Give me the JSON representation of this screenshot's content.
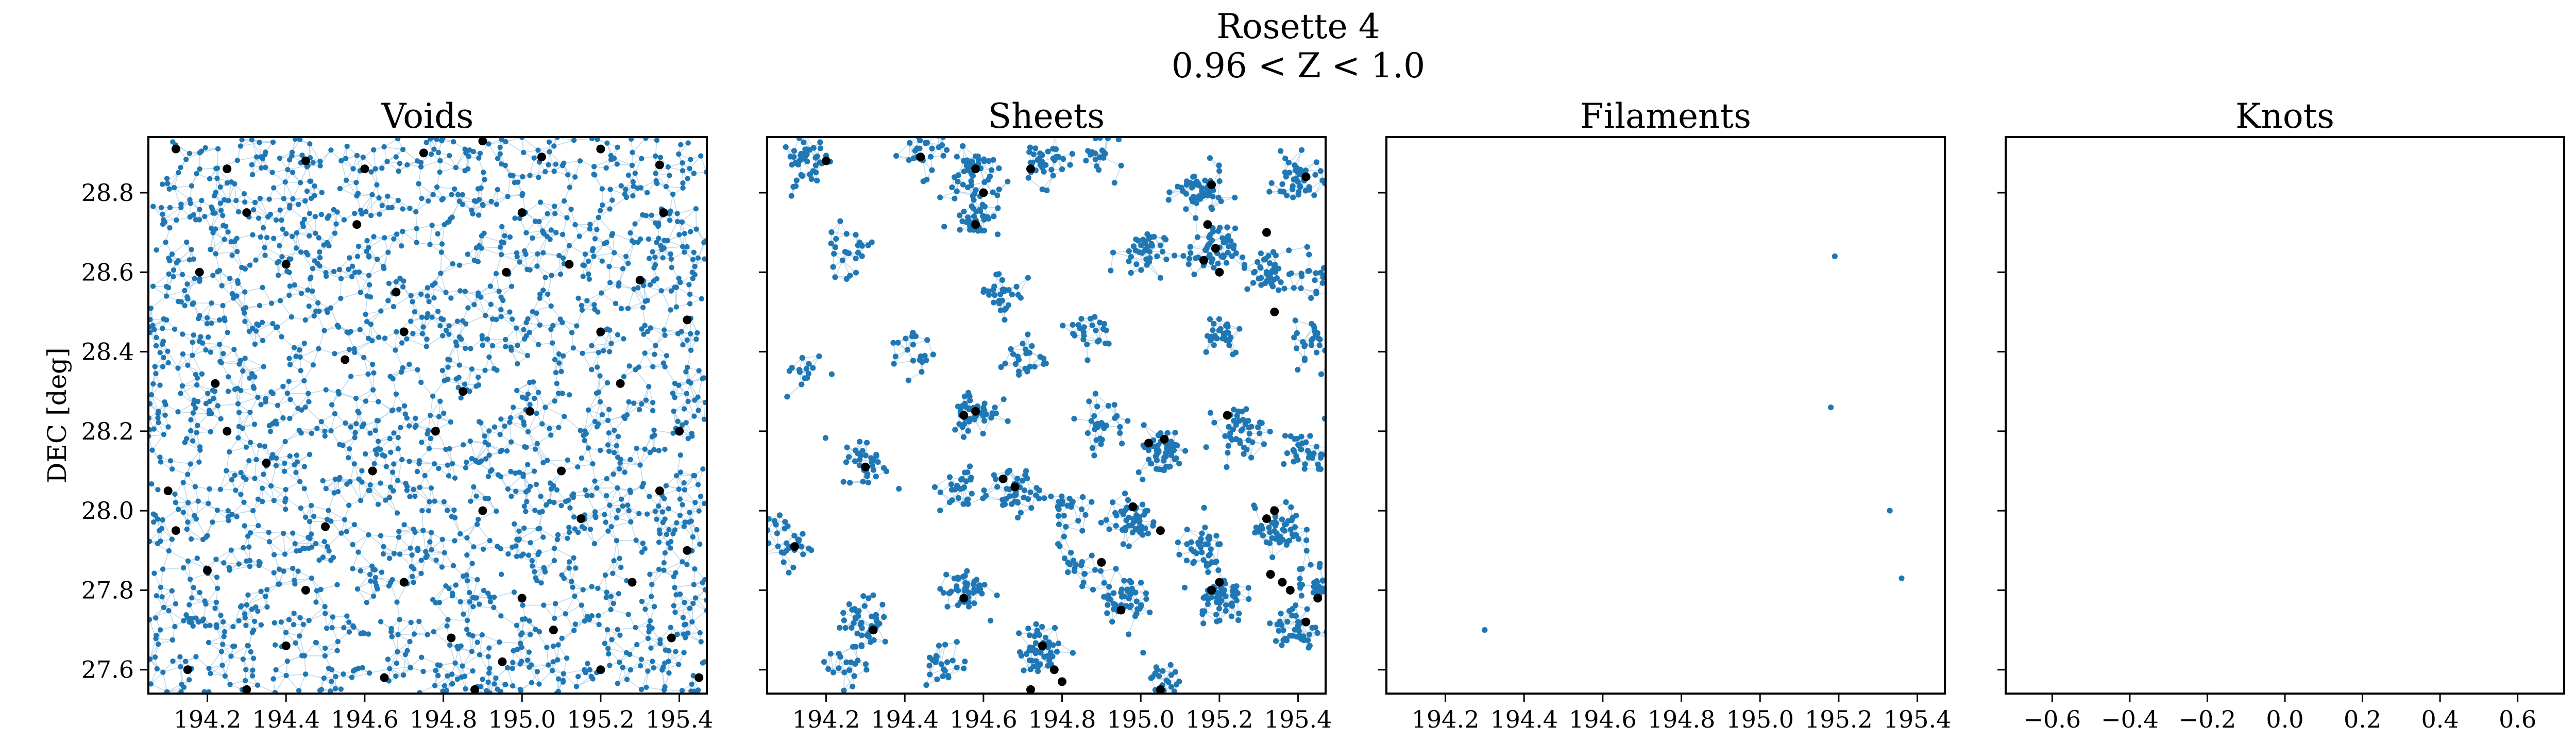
{
  "figure": {
    "title_line1": "Rosette 4",
    "title_line2": "0.96 < Z < 1.0"
  },
  "colors": {
    "points": "#1f77b4",
    "edges": "#1f77b4",
    "critical_points": "#000000"
  },
  "chart_data": [
    {
      "type": "scatter",
      "title": "Voids",
      "ylabel": "DEC [deg]",
      "xlim": [
        194.05,
        195.47
      ],
      "ylim": [
        27.54,
        28.94
      ],
      "xticks": [
        "194.2",
        "194.4",
        "194.6",
        "194.8",
        "195.0",
        "195.2",
        "195.4"
      ],
      "yticks": [
        "27.6",
        "27.8",
        "28.0",
        "28.2",
        "28.4",
        "28.6",
        "28.8"
      ],
      "show_yticklabels": true,
      "galaxies": "dense network filling panel (~2200 points)",
      "critical_points": [
        [
          194.12,
          28.91
        ],
        [
          194.25,
          28.86
        ],
        [
          194.3,
          28.75
        ],
        [
          194.45,
          28.88
        ],
        [
          194.6,
          28.86
        ],
        [
          194.75,
          28.9
        ],
        [
          194.9,
          28.93
        ],
        [
          195.05,
          28.89
        ],
        [
          195.2,
          28.91
        ],
        [
          195.35,
          28.87
        ],
        [
          194.18,
          28.6
        ],
        [
          194.4,
          28.62
        ],
        [
          194.68,
          28.55
        ],
        [
          194.96,
          28.6
        ],
        [
          195.12,
          28.62
        ],
        [
          195.3,
          28.58
        ],
        [
          195.42,
          28.48
        ],
        [
          194.22,
          28.32
        ],
        [
          194.55,
          28.38
        ],
        [
          194.85,
          28.3
        ],
        [
          195.02,
          28.25
        ],
        [
          195.25,
          28.32
        ],
        [
          195.4,
          28.2
        ],
        [
          194.1,
          28.05
        ],
        [
          194.35,
          28.12
        ],
        [
          194.62,
          28.1
        ],
        [
          194.9,
          28.0
        ],
        [
          195.15,
          27.98
        ],
        [
          195.35,
          28.05
        ],
        [
          194.2,
          27.85
        ],
        [
          194.45,
          27.8
        ],
        [
          194.7,
          27.82
        ],
        [
          195.0,
          27.78
        ],
        [
          195.28,
          27.82
        ],
        [
          195.42,
          27.9
        ],
        [
          194.15,
          27.6
        ],
        [
          194.4,
          27.66
        ],
        [
          194.65,
          27.58
        ],
        [
          194.95,
          27.62
        ],
        [
          195.2,
          27.6
        ],
        [
          195.38,
          27.68
        ],
        [
          194.3,
          27.55
        ],
        [
          194.82,
          27.68
        ],
        [
          195.08,
          27.7
        ],
        [
          194.5,
          27.96
        ],
        [
          194.78,
          28.2
        ],
        [
          195.2,
          28.45
        ],
        [
          194.25,
          28.2
        ],
        [
          194.58,
          28.72
        ],
        [
          195.0,
          28.75
        ],
        [
          195.36,
          28.75
        ],
        [
          194.12,
          27.95
        ],
        [
          194.88,
          27.55
        ],
        [
          195.45,
          27.58
        ],
        [
          194.7,
          28.45
        ],
        [
          195.1,
          28.1
        ]
      ]
    },
    {
      "type": "scatter",
      "title": "Sheets",
      "xlim": [
        194.05,
        195.47
      ],
      "ylim": [
        27.54,
        28.94
      ],
      "xticks": [
        "194.2",
        "194.4",
        "194.6",
        "194.8",
        "195.0",
        "195.2",
        "195.4"
      ],
      "show_yticklabels": false,
      "clusters": [
        [
          194.15,
          28.88,
          45
        ],
        [
          194.45,
          28.9,
          30
        ],
        [
          194.58,
          28.85,
          40
        ],
        [
          194.75,
          28.88,
          35
        ],
        [
          194.9,
          28.9,
          25
        ],
        [
          195.15,
          28.8,
          55
        ],
        [
          195.4,
          28.83,
          45
        ],
        [
          194.25,
          28.65,
          25
        ],
        [
          194.58,
          28.75,
          45
        ],
        [
          194.65,
          28.55,
          30
        ],
        [
          195.0,
          28.65,
          40
        ],
        [
          195.18,
          28.65,
          55
        ],
        [
          195.32,
          28.6,
          40
        ],
        [
          195.45,
          28.6,
          30
        ],
        [
          194.42,
          28.4,
          20
        ],
        [
          194.7,
          28.38,
          25
        ],
        [
          194.88,
          28.45,
          25
        ],
        [
          195.2,
          28.45,
          30
        ],
        [
          195.45,
          28.42,
          30
        ],
        [
          194.15,
          28.35,
          15
        ],
        [
          194.3,
          28.12,
          35
        ],
        [
          194.58,
          28.25,
          50
        ],
        [
          194.9,
          28.22,
          30
        ],
        [
          195.05,
          28.15,
          55
        ],
        [
          195.25,
          28.2,
          45
        ],
        [
          195.42,
          28.15,
          35
        ],
        [
          194.55,
          28.05,
          30
        ],
        [
          194.68,
          28.05,
          40
        ],
        [
          194.1,
          27.92,
          35
        ],
        [
          194.55,
          27.8,
          45
        ],
        [
          194.8,
          28.0,
          25
        ],
        [
          194.98,
          27.98,
          55
        ],
        [
          195.15,
          27.9,
          40
        ],
        [
          195.35,
          27.95,
          55
        ],
        [
          195.45,
          27.82,
          35
        ],
        [
          194.3,
          27.72,
          45
        ],
        [
          194.5,
          27.62,
          25
        ],
        [
          194.75,
          27.65,
          50
        ],
        [
          194.95,
          27.78,
          50
        ],
        [
          195.2,
          27.78,
          55
        ],
        [
          195.4,
          27.7,
          45
        ],
        [
          195.05,
          27.58,
          25
        ],
        [
          194.25,
          27.6,
          20
        ],
        [
          194.85,
          27.85,
          20
        ]
      ],
      "critical_points": [
        [
          194.2,
          28.88
        ],
        [
          194.44,
          28.89
        ],
        [
          194.58,
          28.86
        ],
        [
          194.6,
          28.8
        ],
        [
          194.58,
          28.72
        ],
        [
          194.72,
          28.86
        ],
        [
          195.18,
          28.82
        ],
        [
          195.17,
          28.72
        ],
        [
          195.19,
          28.66
        ],
        [
          195.16,
          28.63
        ],
        [
          195.2,
          28.6
        ],
        [
          195.32,
          28.7
        ],
        [
          195.42,
          28.84
        ],
        [
          195.34,
          28.5
        ],
        [
          194.58,
          28.25
        ],
        [
          194.55,
          28.24
        ],
        [
          194.3,
          28.11
        ],
        [
          195.06,
          28.18
        ],
        [
          195.02,
          28.17
        ],
        [
          195.22,
          28.24
        ],
        [
          194.68,
          28.06
        ],
        [
          194.65,
          28.08
        ],
        [
          194.12,
          27.91
        ],
        [
          194.98,
          28.01
        ],
        [
          195.05,
          27.95
        ],
        [
          195.34,
          28.0
        ],
        [
          195.32,
          27.98
        ],
        [
          195.33,
          27.84
        ],
        [
          195.36,
          27.82
        ],
        [
          195.38,
          27.8
        ],
        [
          195.18,
          27.8
        ],
        [
          195.2,
          27.82
        ],
        [
          194.55,
          27.78
        ],
        [
          194.95,
          27.75
        ],
        [
          194.32,
          27.7
        ],
        [
          195.42,
          27.72
        ],
        [
          194.75,
          27.66
        ],
        [
          194.78,
          27.6
        ],
        [
          194.72,
          27.55
        ],
        [
          195.05,
          27.55
        ],
        [
          194.9,
          27.87
        ],
        [
          195.45,
          27.78
        ],
        [
          194.8,
          27.57
        ]
      ]
    },
    {
      "type": "scatter",
      "title": "Filaments",
      "xlim": [
        194.05,
        195.47
      ],
      "ylim": [
        27.54,
        28.94
      ],
      "xticks": [
        "194.2",
        "194.4",
        "194.6",
        "194.8",
        "195.0",
        "195.2",
        "195.4"
      ],
      "show_yticklabels": false,
      "points": [
        [
          195.19,
          28.64
        ],
        [
          195.18,
          28.26
        ],
        [
          195.33,
          28.0
        ],
        [
          195.36,
          27.83
        ],
        [
          194.3,
          27.7
        ]
      ]
    },
    {
      "type": "scatter",
      "title": "Knots",
      "xlim": [
        -0.72,
        0.72
      ],
      "ylim": [
        27.54,
        28.94
      ],
      "xticks": [
        "−0.6",
        "−0.4",
        "−0.2",
        "0.0",
        "0.2",
        "0.4",
        "0.6"
      ],
      "xtick_values": [
        -0.6,
        -0.4,
        -0.2,
        0.0,
        0.2,
        0.4,
        0.6
      ],
      "show_yticklabels": false,
      "points": []
    }
  ]
}
